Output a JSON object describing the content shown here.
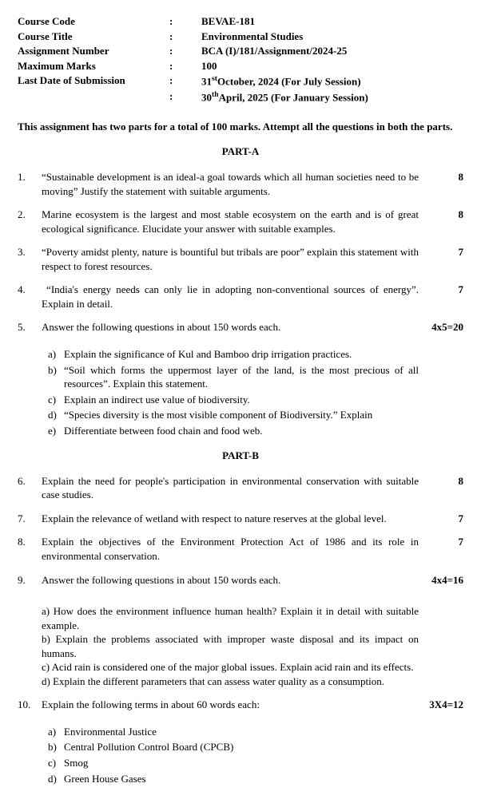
{
  "header": {
    "rows": [
      {
        "label": "Course Code",
        "value": "BEVAE-181"
      },
      {
        "label": "Course Title",
        "value": "Environmental Studies"
      },
      {
        "label": "Assignment Number",
        "value": "BCA (I)/181/Assignment/2024-25"
      },
      {
        "label": "Maximum Marks",
        "value": "100"
      },
      {
        "label": "Last Date of Submission",
        "value": "31stOctober, 2024 (For July Session)",
        "sup": "st",
        "pre": "31",
        "post": "October, 2024 (For July Session)"
      },
      {
        "label": "",
        "value": "30thApril, 2025 (For January Session)",
        "sup": "th",
        "pre": "30",
        "post": "April, 2025 (For January Session)"
      }
    ]
  },
  "intro": "This assignment has two parts for a total of 100 marks. Attempt all the questions in both the parts.",
  "partA": {
    "heading": "PART-A",
    "questions": [
      {
        "num": "1.",
        "text": "“Sustainable development is an ideal-a goal towards which all human societies need to be moving” Justify the statement with suitable arguments.",
        "marks": "8"
      },
      {
        "num": "2.",
        "text": "Marine ecosystem is the largest and most stable ecosystem on the earth and is of great ecological significance. Elucidate your answer with suitable examples.",
        "marks": "8"
      },
      {
        "num": "3.",
        "text": "“Poverty amidst plenty, nature is bountiful but tribals are poor” explain this statement with respect to forest resources.",
        "marks": "7"
      },
      {
        "num": "4.",
        "text": " “India's energy needs can only lie in adopting non-conventional sources of energy”. Explain in detail.",
        "marks": "7"
      },
      {
        "num": "5.",
        "text": "Answer the following questions in about 150 words each.",
        "marks": "4x5=20",
        "subs": [
          {
            "l": "a)",
            "t": "Explain the significance of Kul and Bamboo drip irrigation practices."
          },
          {
            "l": "b)",
            "t": "“Soil which forms the uppermost layer of the land, is the most precious of all resources”. Explain this statement."
          },
          {
            "l": "c)",
            "t": "Explain an indirect use value of biodiversity."
          },
          {
            "l": "d)",
            "t": "“Species diversity is the most visible component of Biodiversity.” Explain"
          },
          {
            "l": "e)",
            "t": "Differentiate between food chain and food web."
          }
        ]
      }
    ]
  },
  "partB": {
    "heading": "PART-B",
    "questions": [
      {
        "num": "6.",
        "text": "Explain the need for people's participation in environmental conservation with suitable case studies.",
        "marks": "8"
      },
      {
        "num": "7.",
        "text": "Explain the relevance of wetland with respect to nature reserves at the global level.",
        "marks": "7"
      },
      {
        "num": "8.",
        "text": "Explain the objectives of the Environment Protection Act of 1986 and its role in environmental conservation.",
        "marks": "7"
      },
      {
        "num": "9.",
        "text": "Answer the following questions in about 150 words each.",
        "marks": "4x4=16",
        "gapAfter": true,
        "subs": [
          {
            "l": "a)",
            "t": "How does the environment influence human health? Explain it in detail with suitable example.",
            "flat": true
          },
          {
            "l": "b)",
            "t": "Explain the problems associated with improper waste disposal and its impact on humans.",
            "flat": true
          },
          {
            "l": "c)",
            "t": "Acid rain is considered one of the major global issues.  Explain acid rain and its effects.",
            "flat": true
          },
          {
            "l": "d)",
            "t": "Explain the different parameters that can assess water quality as a consumption.",
            "flat": true
          }
        ]
      },
      {
        "num": "10.",
        "text": "Explain the following terms in about 60 words each:",
        "marks": "3X4=12",
        "subs": [
          {
            "l": "a)",
            "t": "Environmental Justice"
          },
          {
            "l": "b)",
            "t": "Central Pollution Control Board (CPCB)"
          },
          {
            "l": "c)",
            "t": "Smog"
          },
          {
            "l": "d)",
            "t": "Green House Gases"
          }
        ]
      }
    ]
  }
}
